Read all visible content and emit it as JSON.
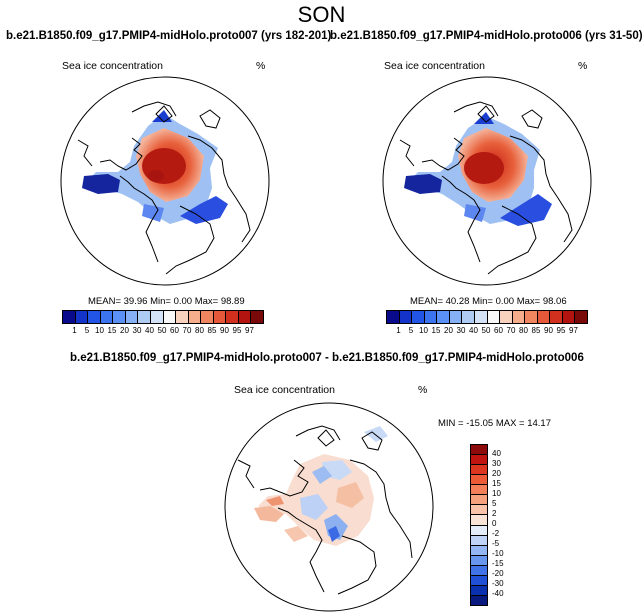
{
  "page_title": "SON",
  "panels": [
    {
      "title": "b.e21.B1850.f09_g17.PMIP4-midHolo.proto007 (yrs 182-201)",
      "variable": "Sea ice concentration",
      "units": "%",
      "stats": {
        "mean_label": "MEAN=",
        "mean": "39.96",
        "min_label": "Min=",
        "min": "0.00",
        "max_label": "Max=",
        "max": "98.89"
      }
    },
    {
      "title": "b.e21.B1850.f09_g17.PMIP4-midHolo.proto006 (yrs 31-50)",
      "variable": "Sea ice concentration",
      "units": "%",
      "stats": {
        "mean_label": "MEAN=",
        "mean": "40.28",
        "min_label": "Min=",
        "min": "0.00",
        "max_label": "Max=",
        "max": "98.06"
      }
    }
  ],
  "diff_panel": {
    "title": "b.e21.B1850.f09_g17.PMIP4-midHolo.proto007 - b.e21.B1850.f09_g17.PMIP4-midHolo.proto006",
    "variable": "Sea ice concentration",
    "units": "%",
    "stats_text": "MIN = -15.05 MAX =  14.17"
  },
  "abs_colorbar": {
    "labels": [
      "1",
      "5",
      "10",
      "15",
      "20",
      "30",
      "40",
      "50",
      "60",
      "70",
      "80",
      "85",
      "90",
      "95",
      "97"
    ],
    "colors": [
      "#0a0a8c",
      "#1433c8",
      "#2255e6",
      "#3c74f0",
      "#5b91f5",
      "#86b0f5",
      "#aecbf4",
      "#d3e2f6",
      "#f8f8f8",
      "#f8d2bd",
      "#f5ad8c",
      "#ef8660",
      "#e6583a",
      "#d2301e",
      "#b31410",
      "#7a0a0a"
    ]
  },
  "diff_colorbar": {
    "labels": [
      "40",
      "30",
      "20",
      "15",
      "10",
      "5",
      "2",
      "0",
      "-2",
      "-5",
      "-10",
      "-15",
      "-20",
      "-30",
      "-40"
    ],
    "colors": [
      "#8c0a0a",
      "#c01410",
      "#dc3520",
      "#ec5a36",
      "#f27f58",
      "#f6a17e",
      "#f8c3a8",
      "#f8e3d6",
      "#e3ecf8",
      "#bed3f5",
      "#94b6f2",
      "#6996ef",
      "#4172e8",
      "#2150d6",
      "#0a30b0",
      "#081a80"
    ]
  }
}
